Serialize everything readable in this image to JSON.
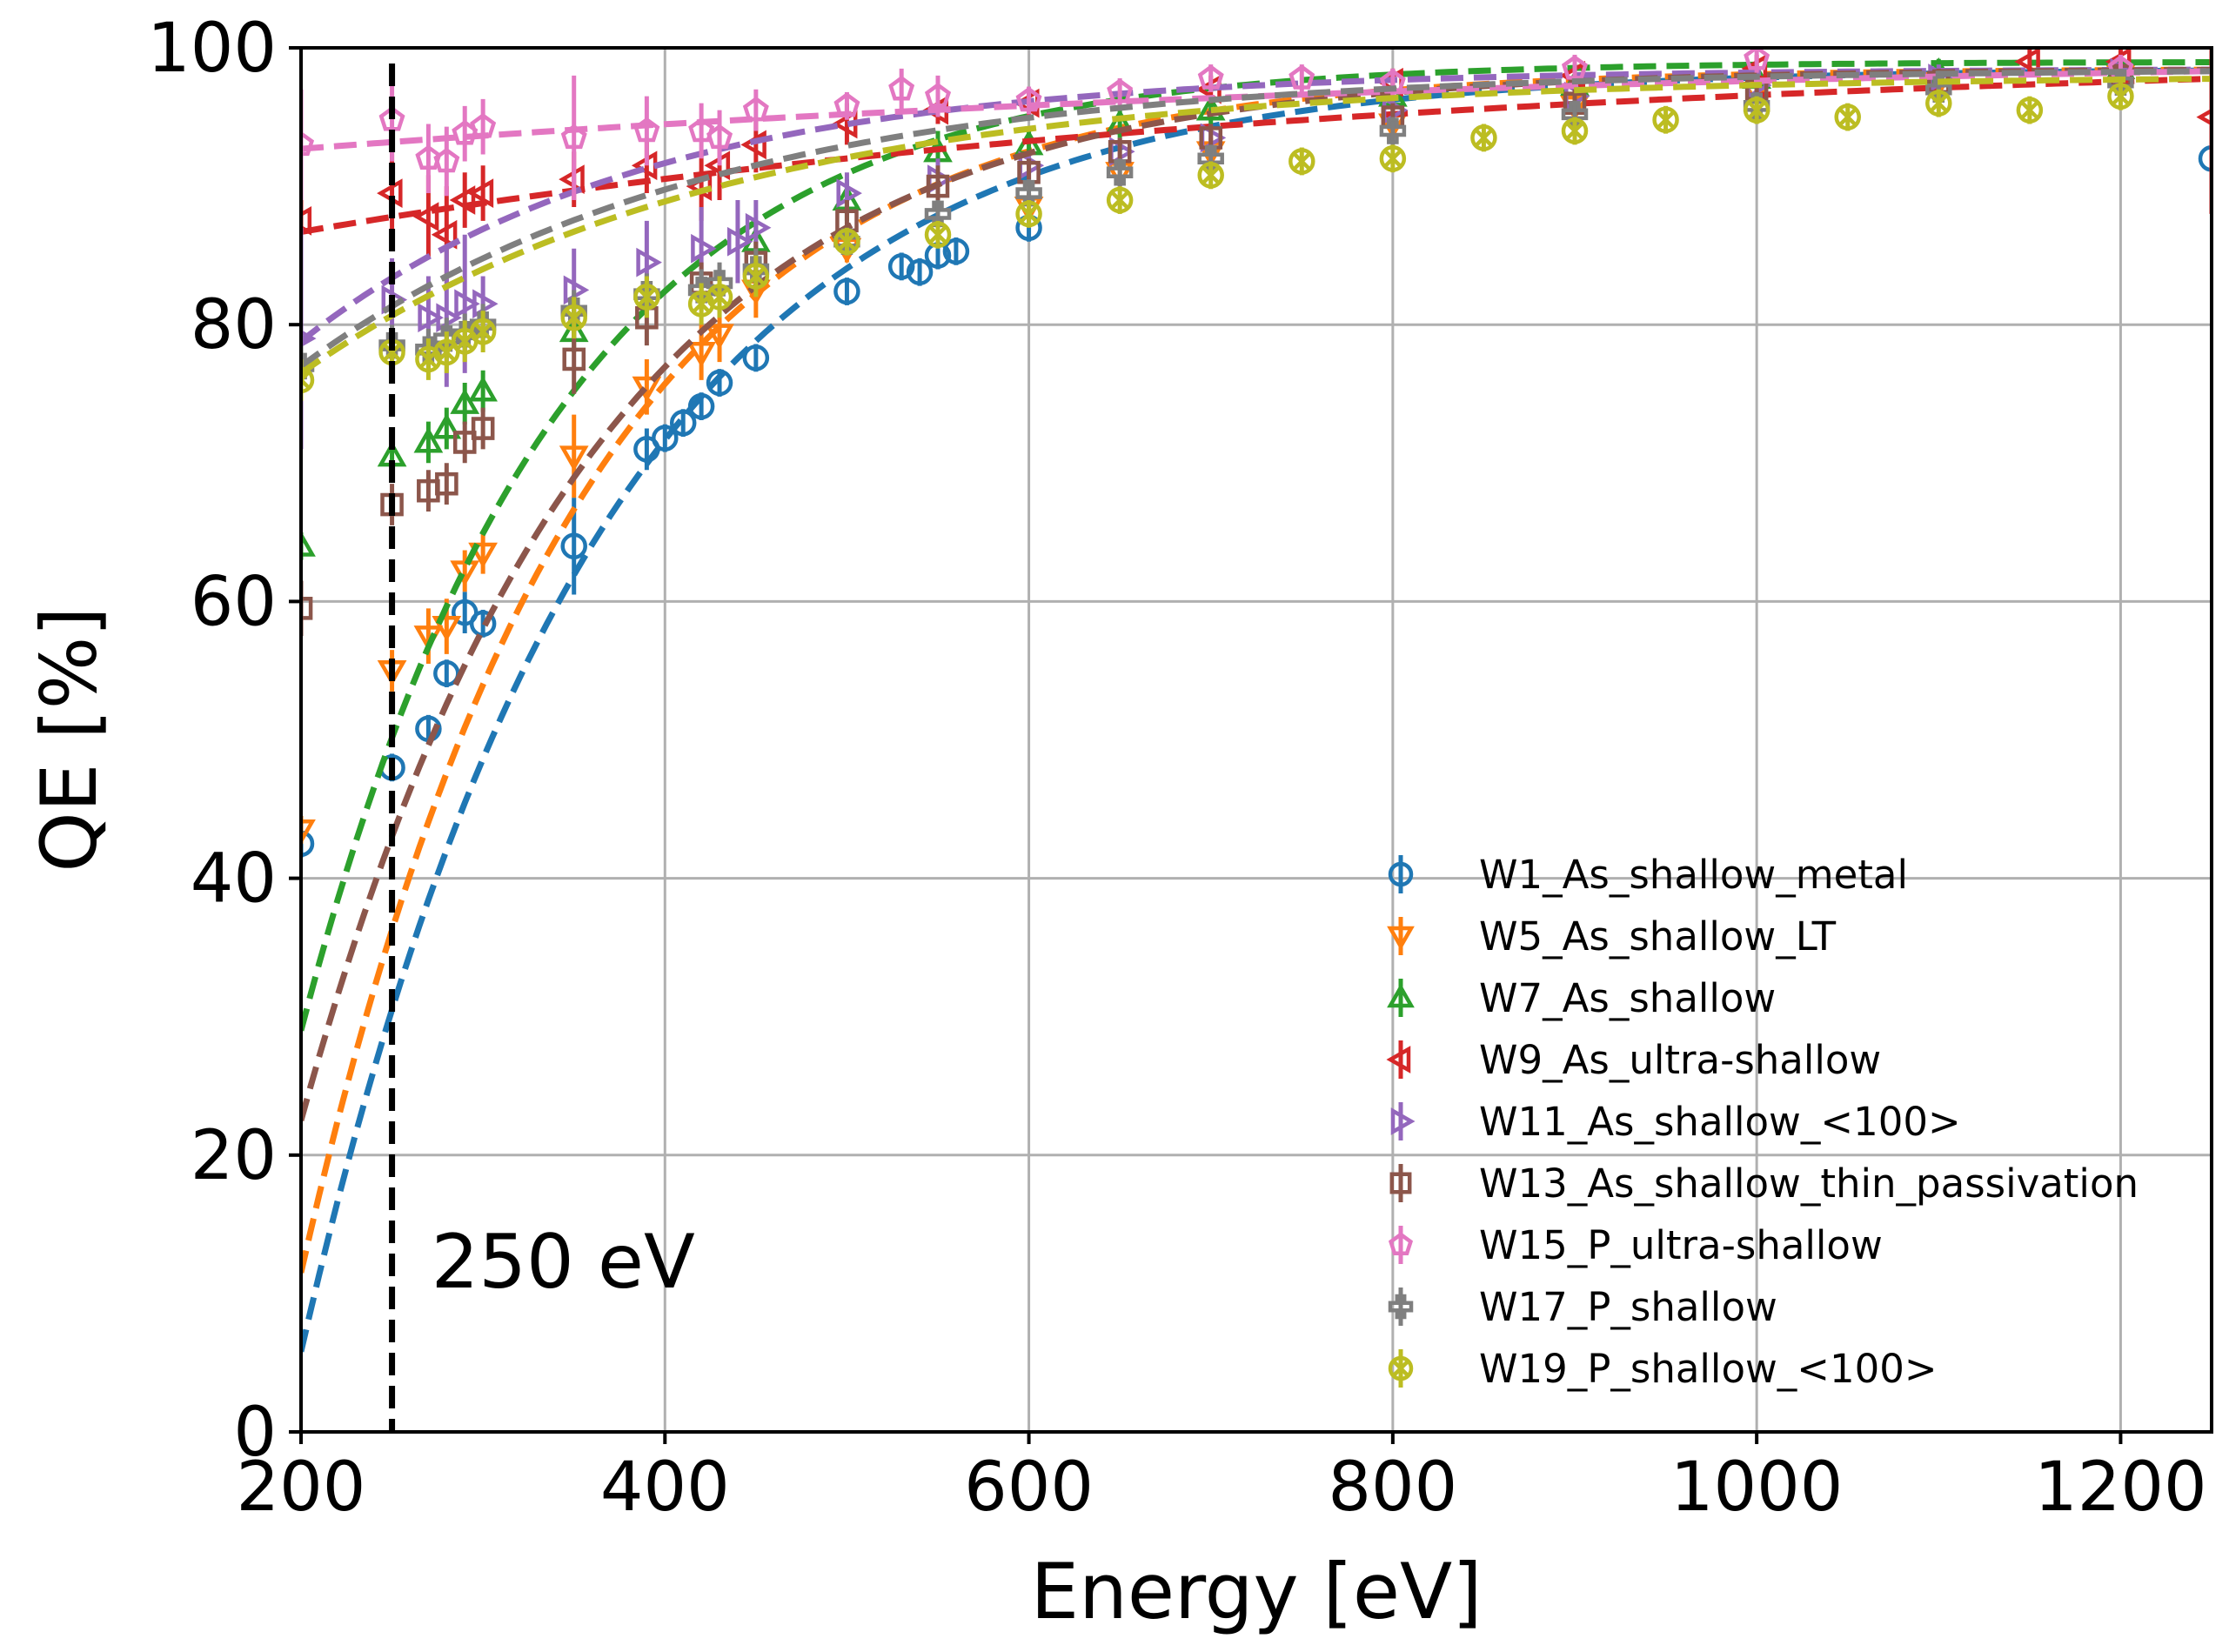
{
  "chart_data": {
    "type": "line",
    "title": "",
    "xlabel": "Energy [eV]",
    "ylabel": "QE [%]",
    "xlim": [
      200,
      1250
    ],
    "ylim": [
      0,
      100
    ],
    "xticks": [
      200,
      400,
      600,
      800,
      1000,
      1200
    ],
    "yticks": [
      0,
      20,
      40,
      60,
      80,
      100
    ],
    "xtick_labels": [
      "200",
      "400",
      "600",
      "800",
      "1000",
      "1200"
    ],
    "ytick_labels": [
      "0",
      "20",
      "40",
      "60",
      "80",
      "100"
    ],
    "grid": true,
    "legend_position": "bottom-right",
    "annotation": {
      "x": 250,
      "label": "250 eV",
      "style": "dashed-vertical-line"
    },
    "series": [
      {
        "name": "W1_As_shallow_metal",
        "color": "#1f77b4",
        "marker": "circle",
        "fit": {
          "a": 98.5,
          "b": 5.8,
          "c": 0.0062
        },
        "points": [
          [
            200,
            42.5,
            1
          ],
          [
            250,
            48,
            1
          ],
          [
            270,
            50.8,
            1
          ],
          [
            280,
            54.8,
            1
          ],
          [
            290,
            59.2,
            1.5
          ],
          [
            300,
            58.4,
            1
          ],
          [
            350,
            64,
            3.5
          ],
          [
            390,
            71,
            1.5
          ],
          [
            400,
            71.8,
            1
          ],
          [
            410,
            72.9,
            1
          ],
          [
            420,
            74.1,
            1
          ],
          [
            430,
            75.8,
            1
          ],
          [
            450,
            77.6,
            1
          ],
          [
            500,
            82.4,
            1
          ],
          [
            530,
            84.2,
            1
          ],
          [
            540,
            83.8,
            1
          ],
          [
            550,
            85,
            1
          ],
          [
            560,
            85.3,
            1
          ],
          [
            600,
            87,
            1
          ],
          [
            1250,
            92,
            3
          ]
        ]
      },
      {
        "name": "W5_As_shallow_LT",
        "color": "#ff7f0e",
        "marker": "triangle-down",
        "fit": {
          "a": 98.5,
          "b": 11.5,
          "c": 0.0067
        },
        "points": [
          [
            200,
            43.5,
            1
          ],
          [
            250,
            55,
            1.5
          ],
          [
            270,
            57.5,
            2
          ],
          [
            280,
            58.2,
            2
          ],
          [
            290,
            62.2,
            1.5
          ],
          [
            300,
            63.5,
            1.5
          ],
          [
            350,
            70.5,
            3
          ],
          [
            390,
            75.5,
            2
          ],
          [
            420,
            78,
            2
          ],
          [
            430,
            79.3,
            2
          ],
          [
            450,
            82.5,
            2
          ],
          [
            500,
            85.5,
            1
          ],
          [
            600,
            88.5,
            1
          ],
          [
            650,
            91,
            1
          ],
          [
            700,
            92.5,
            1
          ],
          [
            800,
            94.5,
            1
          ],
          [
            900,
            95.8,
            1
          ],
          [
            1000,
            96.8,
            1
          ],
          [
            1100,
            97.5,
            1
          ],
          [
            1200,
            98,
            1
          ]
        ]
      },
      {
        "name": "W7_As_shallow",
        "color": "#2ca02c",
        "marker": "triangle-up",
        "fit": {
          "a": 99.0,
          "b": 29.0,
          "c": 0.0072
        },
        "points": [
          [
            200,
            64,
            1
          ],
          [
            250,
            70.5,
            1
          ],
          [
            270,
            71.5,
            1.5
          ],
          [
            280,
            72.5,
            1.5
          ],
          [
            290,
            74.3,
            1.5
          ],
          [
            300,
            75.2,
            1.5
          ],
          [
            350,
            79.5,
            1.5
          ],
          [
            450,
            86,
            1.5
          ],
          [
            500,
            89,
            1.5
          ],
          [
            550,
            92.5,
            1.5
          ],
          [
            600,
            93,
            1
          ],
          [
            650,
            94.5,
            1
          ],
          [
            700,
            95.5,
            1
          ],
          [
            800,
            96.5,
            1
          ],
          [
            900,
            97.3,
            1
          ],
          [
            1000,
            97.8,
            1
          ],
          [
            1100,
            98.2,
            1
          ],
          [
            1200,
            98.5,
            1
          ]
        ]
      },
      {
        "name": "W9_As_ultra-shallow",
        "color": "#d62728",
        "marker": "triangle-left",
        "fit": {
          "a": 100.0,
          "b": 86.7,
          "c": 0.0017
        },
        "points": [
          [
            200,
            87.5,
            7
          ],
          [
            250,
            89.5,
            3
          ],
          [
            270,
            87.8,
            3
          ],
          [
            280,
            86.5,
            3.5
          ],
          [
            290,
            89,
            2
          ],
          [
            300,
            89.5,
            2
          ],
          [
            350,
            90.5,
            2
          ],
          [
            390,
            91.5,
            2
          ],
          [
            420,
            90,
            2.5
          ],
          [
            430,
            91.5,
            2.5
          ],
          [
            450,
            93,
            2
          ],
          [
            500,
            94.5,
            1.5
          ],
          [
            550,
            95.5,
            1
          ],
          [
            600,
            96,
            1
          ],
          [
            700,
            97,
            1
          ],
          [
            800,
            97.5,
            1
          ],
          [
            900,
            98,
            1
          ],
          [
            1000,
            98.5,
            1
          ],
          [
            1150,
            99,
            1
          ],
          [
            1200,
            99,
            1
          ],
          [
            1250,
            95,
            7
          ]
        ]
      },
      {
        "name": "W11_As_shallow_<100>",
        "color": "#9467bd",
        "marker": "triangle-right",
        "fit": {
          "a": 98.5,
          "b": 78.8,
          "c": 0.0053
        },
        "points": [
          [
            200,
            79,
            8
          ],
          [
            250,
            81.8,
            3
          ],
          [
            270,
            80.5,
            3
          ],
          [
            280,
            80.5,
            5
          ],
          [
            290,
            81.5,
            5
          ],
          [
            300,
            81.5,
            2
          ],
          [
            350,
            82.5,
            3
          ],
          [
            390,
            84.5,
            3
          ],
          [
            420,
            85.5,
            3
          ],
          [
            440,
            86,
            3
          ],
          [
            450,
            87,
            2
          ],
          [
            500,
            89.5,
            1.5
          ],
          [
            550,
            90.5,
            1.5
          ],
          [
            600,
            91.5,
            1
          ],
          [
            650,
            92.5,
            1
          ],
          [
            700,
            93.5,
            1
          ],
          [
            800,
            95.5,
            1
          ],
          [
            900,
            96.5,
            1
          ],
          [
            1000,
            97.3,
            1
          ],
          [
            1100,
            97.8,
            1
          ],
          [
            1200,
            98.2,
            1
          ]
        ]
      },
      {
        "name": "W13_As_shallow_thin_passivation",
        "color": "#8c564b",
        "marker": "square",
        "fit": {
          "a": 98.5,
          "b": 22.5,
          "c": 0.0063
        },
        "points": [
          [
            200,
            59.5,
            2
          ],
          [
            250,
            67,
            1.5
          ],
          [
            270,
            68,
            1.5
          ],
          [
            280,
            68.5,
            1.5
          ],
          [
            290,
            71.5,
            1.5
          ],
          [
            300,
            72.5,
            1.5
          ],
          [
            350,
            77.5,
            2.5
          ],
          [
            390,
            80.5,
            2
          ],
          [
            420,
            83,
            1.5
          ],
          [
            450,
            84.5,
            1.5
          ],
          [
            500,
            87.5,
            1.5
          ],
          [
            550,
            90,
            1.5
          ],
          [
            600,
            91,
            1
          ],
          [
            650,
            92.5,
            1
          ],
          [
            700,
            93.5,
            1
          ],
          [
            800,
            95,
            1
          ],
          [
            900,
            96,
            1
          ],
          [
            1000,
            97,
            1
          ],
          [
            1100,
            97.5,
            1
          ],
          [
            1200,
            98,
            1
          ]
        ]
      },
      {
        "name": "W15_P_ultra-shallow",
        "color": "#e377c2",
        "marker": "pentagon",
        "fit": {
          "a": 100.0,
          "b": 92.7,
          "c": 0.0014
        },
        "points": [
          [
            200,
            93,
            4
          ],
          [
            250,
            94.8,
            3
          ],
          [
            270,
            92,
            2.5
          ],
          [
            280,
            91.8,
            2.5
          ],
          [
            290,
            93.8,
            2
          ],
          [
            300,
            94.3,
            2
          ],
          [
            350,
            93.5,
            4.5
          ],
          [
            390,
            94,
            2.5
          ],
          [
            420,
            94,
            2
          ],
          [
            430,
            93.5,
            2
          ],
          [
            450,
            95.5,
            1.5
          ],
          [
            500,
            95.8,
            1
          ],
          [
            530,
            97,
            1.5
          ],
          [
            550,
            96.5,
            1.5
          ],
          [
            600,
            96.2,
            1
          ],
          [
            650,
            96.8,
            1
          ],
          [
            700,
            97.8,
            1
          ],
          [
            750,
            97.8,
            1
          ],
          [
            800,
            97.5,
            1
          ],
          [
            900,
            98.5,
            1
          ],
          [
            1000,
            99.2,
            1
          ],
          [
            1200,
            98.5,
            1
          ]
        ]
      },
      {
        "name": "W17_P_shallow",
        "color": "#7f7f7f",
        "marker": "plus",
        "fit": {
          "a": 98.5,
          "b": 77.0,
          "c": 0.0045
        },
        "points": [
          [
            200,
            77,
            1.5
          ],
          [
            250,
            78.5,
            1.5
          ],
          [
            270,
            78.2,
            1.5
          ],
          [
            280,
            79,
            1.5
          ],
          [
            290,
            79.3,
            1.5
          ],
          [
            300,
            80,
            1.5
          ],
          [
            350,
            81,
            1.5
          ],
          [
            390,
            82.2,
            1.5
          ],
          [
            420,
            82.5,
            1.5
          ],
          [
            430,
            83,
            1.5
          ],
          [
            450,
            84,
            1.5
          ],
          [
            500,
            86,
            1
          ],
          [
            550,
            88,
            1
          ],
          [
            600,
            89.5,
            1
          ],
          [
            650,
            91,
            1
          ],
          [
            700,
            92,
            1
          ],
          [
            800,
            94,
            1
          ],
          [
            900,
            95.2,
            1
          ],
          [
            1000,
            95.8,
            1
          ],
          [
            1100,
            97,
            1
          ],
          [
            1200,
            97.5,
            1
          ]
        ]
      },
      {
        "name": "W19_P_shallow_<100>",
        "color": "#bcbd22",
        "marker": "cross-circle",
        "fit": {
          "a": 98.0,
          "b": 76.5,
          "c": 0.0043
        },
        "points": [
          [
            200,
            76,
            1.5
          ],
          [
            250,
            78,
            1.5
          ],
          [
            270,
            77.5,
            1.5
          ],
          [
            280,
            78,
            1.5
          ],
          [
            290,
            78.8,
            1.5
          ],
          [
            300,
            79.5,
            1.5
          ],
          [
            350,
            80.5,
            1.5
          ],
          [
            390,
            82,
            1.5
          ],
          [
            420,
            81.5,
            1.5
          ],
          [
            430,
            82,
            1.5
          ],
          [
            450,
            83.5,
            1.5
          ],
          [
            500,
            86,
            1
          ],
          [
            550,
            86.5,
            1
          ],
          [
            600,
            88,
            1
          ],
          [
            650,
            89,
            1
          ],
          [
            700,
            90.8,
            1
          ],
          [
            750,
            91.8,
            1
          ],
          [
            800,
            92,
            1
          ],
          [
            850,
            93.5,
            1
          ],
          [
            900,
            94,
            1
          ],
          [
            950,
            94.8,
            1
          ],
          [
            1000,
            95.5,
            1
          ],
          [
            1050,
            95,
            1
          ],
          [
            1100,
            96,
            1
          ],
          [
            1150,
            95.5,
            1
          ],
          [
            1200,
            96.5,
            1
          ]
        ]
      }
    ]
  }
}
